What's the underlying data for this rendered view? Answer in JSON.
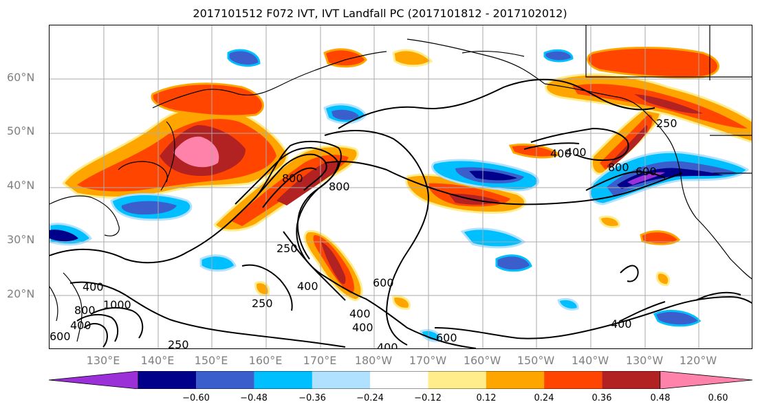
{
  "title": "2017101512 F072 IVT, IVT Landfall PC (2017101812 - 2017102012)",
  "lat_labels": [
    "60°N",
    "50°N",
    "40°N",
    "30°N",
    "20°N"
  ],
  "lon_labels": [
    "130°E",
    "140°E",
    "150°E",
    "160°E",
    "170°E",
    "180°W",
    "170°W",
    "160°W",
    "150°W",
    "140°W",
    "130°W",
    "120°W"
  ],
  "contour_labels": [
    "250",
    "400",
    "800",
    "600",
    "800",
    "400",
    "400",
    "800",
    "600",
    "250",
    "400",
    "250",
    "600",
    "400",
    "400",
    "1000",
    "800",
    "400",
    "600",
    "400",
    "400",
    "250"
  ],
  "colorbar": {
    "ticks": [
      "−0.60",
      "−0.48",
      "−0.36",
      "−0.24",
      "−0.12",
      "0.12",
      "0.24",
      "0.36",
      "0.48",
      "0.60"
    ],
    "colors": [
      "#9b30d9",
      "#00008b",
      "#3a5fcd",
      "#00bfff",
      "#b0e2ff",
      "#ffffff",
      "#ffec8b",
      "#ffa500",
      "#ff4500",
      "#b22222",
      "#ff82ab"
    ]
  },
  "colors": {
    "neg_strong": "#00008b",
    "neg_mid": "#3a5fcd",
    "neg_light": "#00bfff",
    "neg_pale": "#b0e2ff",
    "pos_pale": "#ffec8b",
    "pos_light": "#ffa500",
    "pos_mid": "#ff4500",
    "pos_strong": "#b22222",
    "pos_max": "#ff82ab",
    "neg_max": "#9b30d9"
  }
}
